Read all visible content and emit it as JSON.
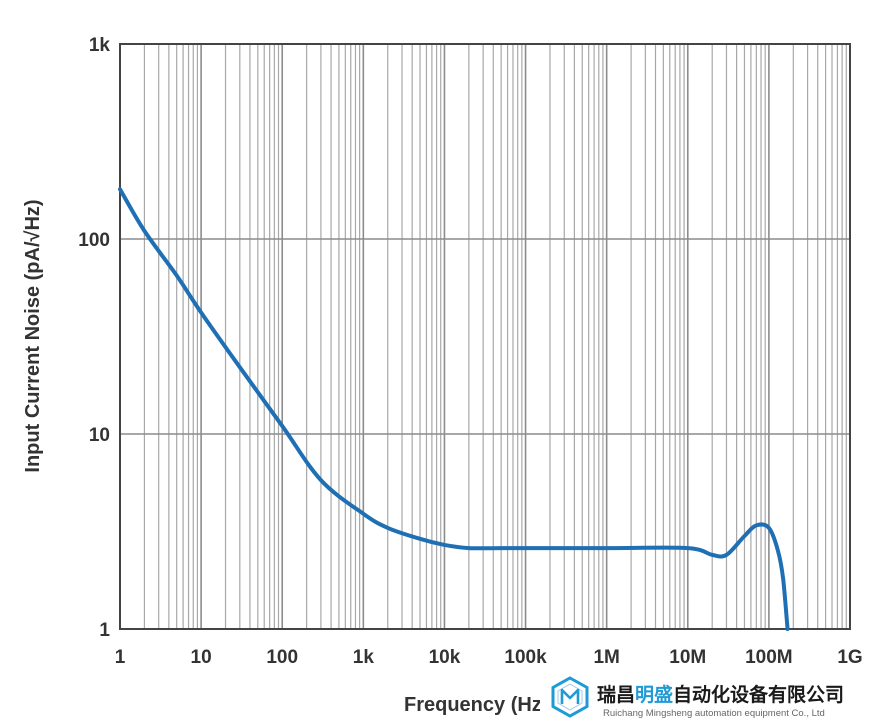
{
  "chart_data": {
    "type": "line",
    "title": "",
    "xlabel": "Frequency (Hz)",
    "ylabel": "Input Current Noise (pA/√Hz)",
    "xscale": "log",
    "yscale": "log",
    "xlim": [
      1,
      1000000000
    ],
    "ylim": [
      1,
      1000
    ],
    "grid": true,
    "x_ticks": [
      {
        "value": 1,
        "label": "1"
      },
      {
        "value": 10,
        "label": "10"
      },
      {
        "value": 100,
        "label": "100"
      },
      {
        "value": 1000,
        "label": "1k"
      },
      {
        "value": 10000,
        "label": "10k"
      },
      {
        "value": 100000,
        "label": "100k"
      },
      {
        "value": 1000000,
        "label": "1M"
      },
      {
        "value": 10000000,
        "label": "10M"
      },
      {
        "value": 100000000,
        "label": "100M"
      },
      {
        "value": 1000000000,
        "label": "1G"
      }
    ],
    "y_ticks": [
      {
        "value": 1,
        "label": "1"
      },
      {
        "value": 10,
        "label": "10"
      },
      {
        "value": 100,
        "label": "100"
      },
      {
        "value": 1000,
        "label": "1k"
      }
    ],
    "series": [
      {
        "color": "#1f6fb5",
        "points": [
          [
            1,
            180
          ],
          [
            2,
            110
          ],
          [
            5,
            65
          ],
          [
            10,
            42
          ],
          [
            30,
            22
          ],
          [
            100,
            11
          ],
          [
            300,
            5.8
          ],
          [
            1000,
            3.9
          ],
          [
            2000,
            3.3
          ],
          [
            5000,
            2.9
          ],
          [
            10000,
            2.7
          ],
          [
            20000,
            2.6
          ],
          [
            50000,
            2.6
          ],
          [
            100000,
            2.6
          ],
          [
            1000000,
            2.6
          ],
          [
            10000000,
            2.6
          ],
          [
            20000000,
            2.4
          ],
          [
            30000000,
            2.4
          ],
          [
            50000000,
            3.0
          ],
          [
            70000000,
            3.4
          ],
          [
            100000000,
            3.3
          ],
          [
            130000000,
            2.5
          ],
          [
            150000000,
            1.8
          ],
          [
            170000000,
            1.0
          ]
        ]
      }
    ]
  },
  "watermark": {
    "name_part1": "瑞昌",
    "name_part2": "明盛",
    "name_part3": "自动化设备有限公司",
    "subtitle": "Ruichang Mingsheng automation equipment Co., Ltd",
    "accent_color": "#1e9ad6",
    "icon": "hexagon-m-logo"
  }
}
